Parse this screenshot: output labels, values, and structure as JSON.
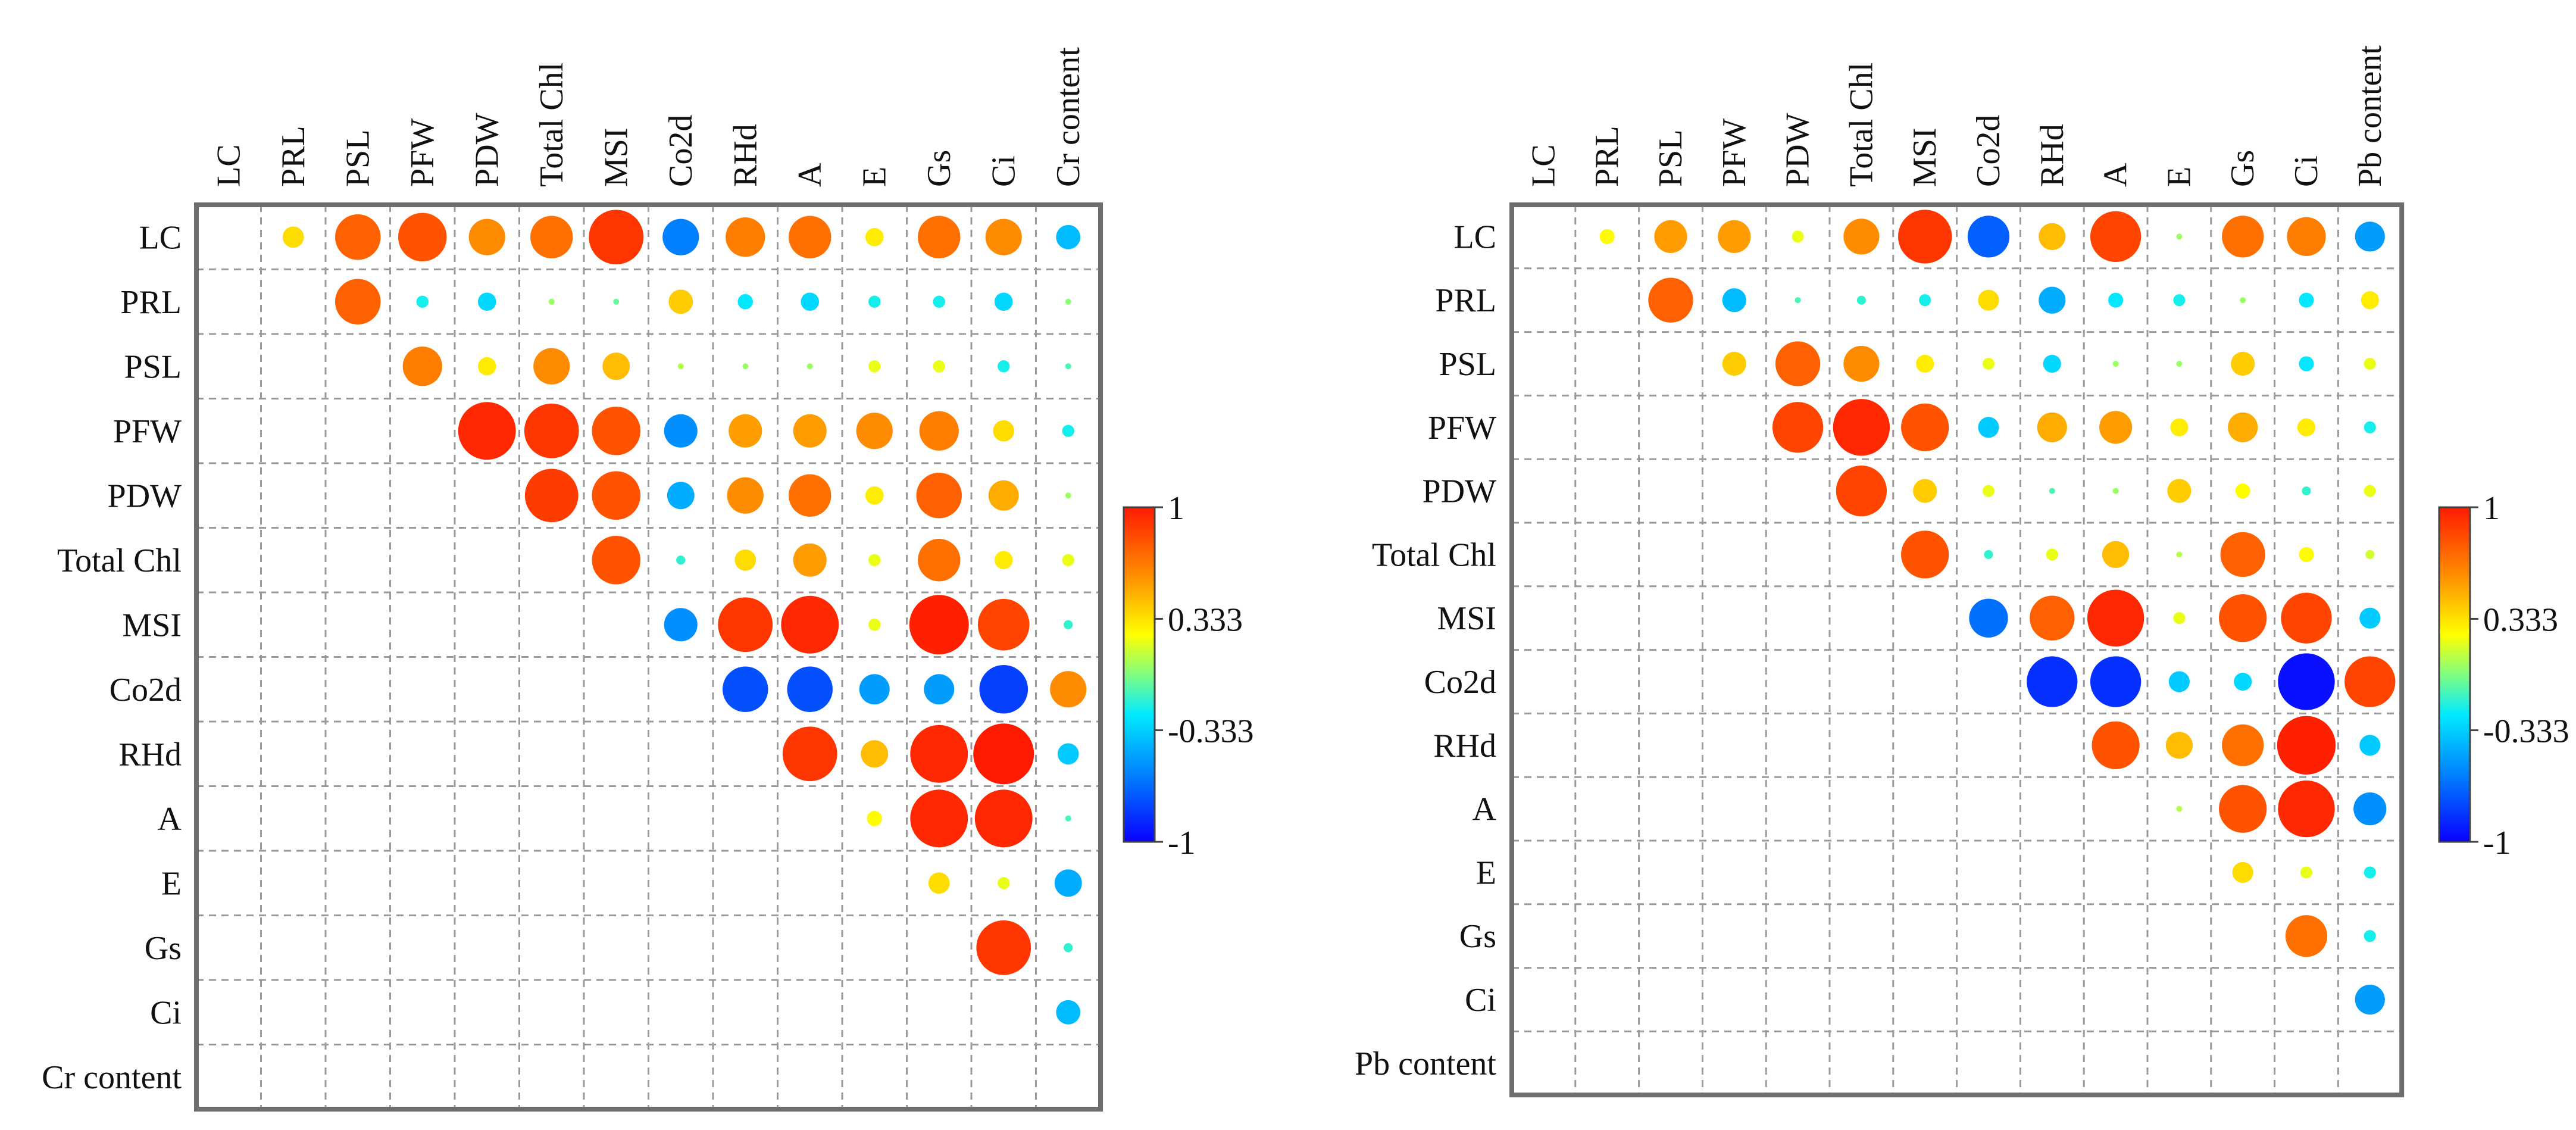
{
  "chart_data": [
    {
      "type": "correlation-matrix",
      "title": "",
      "variables": [
        "LC",
        "PRL",
        "PSL",
        "PFW",
        "PDW",
        "Total Chl",
        "MSI",
        "Co2d",
        "RHd",
        "A",
        "E",
        "Gs",
        "Ci",
        "Cr content"
      ],
      "matrix": [
        [
          null,
          0.35,
          0.75,
          0.8,
          0.6,
          0.7,
          0.9,
          -0.6,
          0.65,
          0.7,
          0.3,
          0.7,
          0.6,
          -0.4
        ],
        [
          null,
          null,
          0.75,
          -0.2,
          -0.3,
          0.05,
          -0.05,
          0.4,
          -0.25,
          -0.3,
          -0.2,
          -0.2,
          -0.3,
          0.02
        ],
        [
          null,
          null,
          null,
          0.65,
          0.3,
          0.6,
          0.45,
          0.1,
          0.05,
          0.05,
          0.2,
          0.2,
          -0.2,
          -0.1
        ],
        [
          null,
          null,
          null,
          null,
          0.95,
          0.9,
          0.8,
          -0.55,
          0.55,
          0.55,
          0.6,
          0.65,
          0.35,
          -0.2
        ],
        [
          null,
          null,
          null,
          null,
          null,
          0.88,
          0.8,
          -0.45,
          0.6,
          0.7,
          0.3,
          0.75,
          0.5,
          0.05
        ],
        [
          null,
          null,
          null,
          null,
          null,
          null,
          0.8,
          -0.15,
          0.35,
          0.55,
          0.2,
          0.7,
          0.3,
          0.2
        ],
        [
          null,
          null,
          null,
          null,
          null,
          null,
          null,
          -0.55,
          0.9,
          0.95,
          0.2,
          0.98,
          0.85,
          -0.15
        ],
        [
          null,
          null,
          null,
          null,
          null,
          null,
          null,
          null,
          -0.75,
          -0.75,
          -0.5,
          -0.5,
          -0.8,
          0.6
        ],
        [
          null,
          null,
          null,
          null,
          null,
          null,
          null,
          null,
          null,
          0.9,
          0.45,
          0.95,
          1.0,
          -0.35
        ],
        [
          null,
          null,
          null,
          null,
          null,
          null,
          null,
          null,
          null,
          null,
          0.25,
          0.95,
          0.95,
          -0.1
        ],
        [
          null,
          null,
          null,
          null,
          null,
          null,
          null,
          null,
          null,
          null,
          null,
          0.35,
          0.2,
          -0.45
        ],
        [
          null,
          null,
          null,
          null,
          null,
          null,
          null,
          null,
          null,
          null,
          null,
          null,
          0.9,
          -0.15
        ],
        [
          null,
          null,
          null,
          null,
          null,
          null,
          null,
          null,
          null,
          null,
          null,
          null,
          null,
          -0.4
        ],
        [
          null,
          null,
          null,
          null,
          null,
          null,
          null,
          null,
          null,
          null,
          null,
          null,
          null,
          null
        ]
      ],
      "colorbar": {
        "ticks": [
          "1",
          "0.333",
          "-0.333",
          "-1"
        ],
        "range": [
          -1,
          1
        ]
      }
    },
    {
      "type": "correlation-matrix",
      "title": "",
      "variables": [
        "LC",
        "PRL",
        "PSL",
        "PFW",
        "PDW",
        "Total Chl",
        "MSI",
        "Co2d",
        "RHd",
        "A",
        "E",
        "Gs",
        "Ci",
        "Pb content"
      ],
      "matrix": [
        [
          null,
          0.25,
          0.55,
          0.55,
          0.2,
          0.6,
          0.9,
          -0.7,
          0.45,
          0.85,
          0.05,
          0.7,
          0.65,
          -0.5
        ],
        [
          null,
          null,
          0.75,
          -0.4,
          -0.1,
          -0.15,
          -0.2,
          0.35,
          -0.45,
          -0.25,
          -0.2,
          0.05,
          -0.25,
          0.3
        ],
        [
          null,
          null,
          null,
          0.4,
          0.75,
          0.6,
          0.3,
          0.2,
          -0.3,
          0.05,
          0.05,
          0.4,
          -0.25,
          0.2
        ],
        [
          null,
          null,
          null,
          null,
          0.85,
          0.95,
          0.8,
          -0.35,
          0.5,
          0.55,
          0.3,
          0.5,
          0.3,
          -0.2
        ],
        [
          null,
          null,
          null,
          null,
          null,
          0.85,
          0.4,
          0.2,
          -0.1,
          0.05,
          0.4,
          0.25,
          -0.15,
          0.2
        ],
        [
          null,
          null,
          null,
          null,
          null,
          null,
          0.8,
          -0.15,
          0.2,
          0.45,
          0.1,
          0.75,
          0.25,
          0.15
        ],
        [
          null,
          null,
          null,
          null,
          null,
          null,
          null,
          -0.65,
          0.75,
          0.95,
          0.2,
          0.8,
          0.85,
          -0.35
        ],
        [
          null,
          null,
          null,
          null,
          null,
          null,
          null,
          null,
          -0.85,
          -0.85,
          -0.35,
          -0.3,
          -0.95,
          0.85
        ],
        [
          null,
          null,
          null,
          null,
          null,
          null,
          null,
          null,
          null,
          0.8,
          0.45,
          0.7,
          0.98,
          -0.35
        ],
        [
          null,
          null,
          null,
          null,
          null,
          null,
          null,
          null,
          null,
          null,
          0.1,
          0.8,
          0.95,
          -0.55
        ],
        [
          null,
          null,
          null,
          null,
          null,
          null,
          null,
          null,
          null,
          null,
          null,
          0.35,
          0.2,
          -0.2
        ],
        [
          null,
          null,
          null,
          null,
          null,
          null,
          null,
          null,
          null,
          null,
          null,
          null,
          0.7,
          -0.2
        ],
        [
          null,
          null,
          null,
          null,
          null,
          null,
          null,
          null,
          null,
          null,
          null,
          null,
          null,
          -0.5
        ],
        [
          null,
          null,
          null,
          null,
          null,
          null,
          null,
          null,
          null,
          null,
          null,
          null,
          null,
          null
        ]
      ],
      "colorbar": {
        "ticks": [
          "1",
          "0.333",
          "-0.333",
          "-1"
        ],
        "range": [
          -1,
          1
        ]
      }
    }
  ]
}
